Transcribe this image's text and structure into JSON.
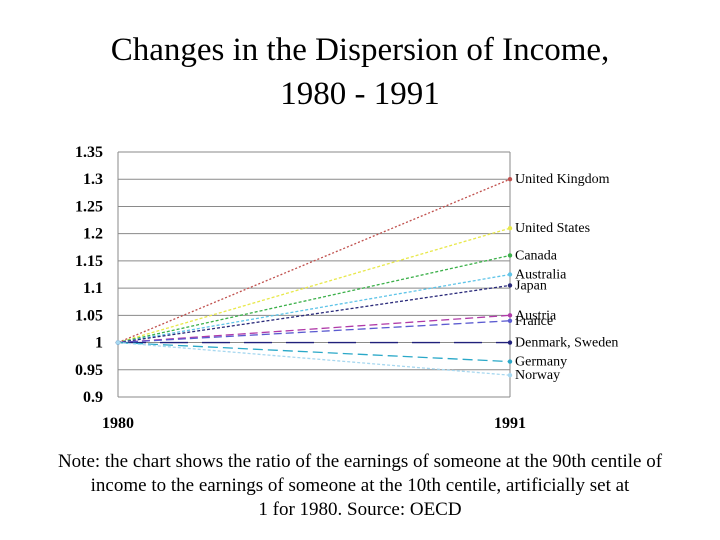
{
  "title_lines": [
    "Changes in the Dispersion of Income,",
    "1980 - 1991"
  ],
  "note_lines": [
    "Note: the chart shows the ratio of the earnings of someone at the 90th centile of",
    "income to the earnings of someone at the 10th centile, artificially set at",
    "1 for 1980.  Source: OECD"
  ],
  "chart_data": {
    "type": "line",
    "x": [
      "1980",
      "1991"
    ],
    "ylim": [
      0.9,
      1.35
    ],
    "yticks": [
      "0.9",
      "0.95",
      "1",
      "1.05",
      "1.1",
      "1.15",
      "1.2",
      "1.25",
      "1.3",
      "1.35"
    ],
    "grid": true,
    "series": [
      {
        "name": "United Kingdom",
        "values": [
          1,
          1.3
        ],
        "color": "#c0504d",
        "dash": "2,2"
      },
      {
        "name": "United States",
        "values": [
          1,
          1.21
        ],
        "color": "#e8e84a",
        "dash": "3,2"
      },
      {
        "name": "Canada",
        "values": [
          1,
          1.16
        ],
        "color": "#3cb04a",
        "dash": "3,2"
      },
      {
        "name": "Australia",
        "values": [
          1,
          1.125
        ],
        "color": "#5fc4e8",
        "dash": "3,2"
      },
      {
        "name": "Japan",
        "values": [
          1,
          1.105
        ],
        "color": "#2a2a7a",
        "dash": "3,2"
      },
      {
        "name": "Austria",
        "values": [
          1,
          1.05
        ],
        "color": "#b03aa8",
        "dash": "8,4"
      },
      {
        "name": "France",
        "values": [
          1,
          1.04
        ],
        "color": "#5a5ad0",
        "dash": "8,4"
      },
      {
        "name": "Denmark, Sweden",
        "values": [
          1,
          1.0
        ],
        "color": "#20207a",
        "dash": "28,14"
      },
      {
        "name": "Germany",
        "values": [
          1,
          0.965
        ],
        "color": "#2aa8c8",
        "dash": "10,5"
      },
      {
        "name": "Norway",
        "values": [
          1,
          0.94
        ],
        "color": "#a8d8f0",
        "dash": "3,2"
      }
    ]
  }
}
